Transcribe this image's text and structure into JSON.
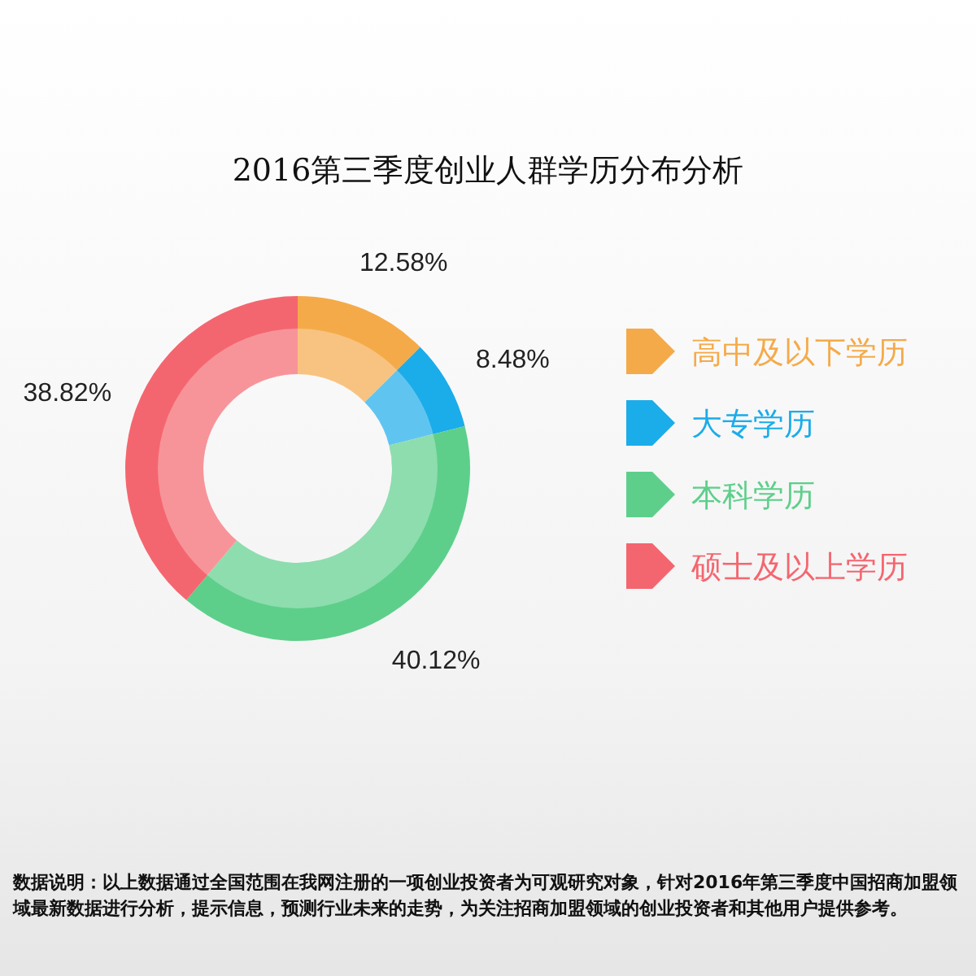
{
  "chart_data": {
    "type": "donut",
    "title": "2016第三季度创业人群学历分布分析",
    "categories": [
      "高中及以下学历",
      "大专学历",
      "本科学历",
      "硕士及以上学历"
    ],
    "values": [
      12.58,
      8.48,
      40.12,
      38.82
    ],
    "value_labels": [
      "12.58%",
      "8.48%",
      "40.12%",
      "38.82%"
    ],
    "colors": [
      "#f5aa49",
      "#1bacea",
      "#5dcf8b",
      "#f4666f"
    ],
    "legend": "right",
    "annotations": [
      "数据说明：以上数据通过全国范围在我网注册的一项创业投资者为可观研究对象，针对2016年第三季度中国招商加盟领域最新数据进行分析，提示信息，预测行业未来的走势，为关注招商加盟领域的创业投资者和其他用户提供参考。"
    ]
  }
}
